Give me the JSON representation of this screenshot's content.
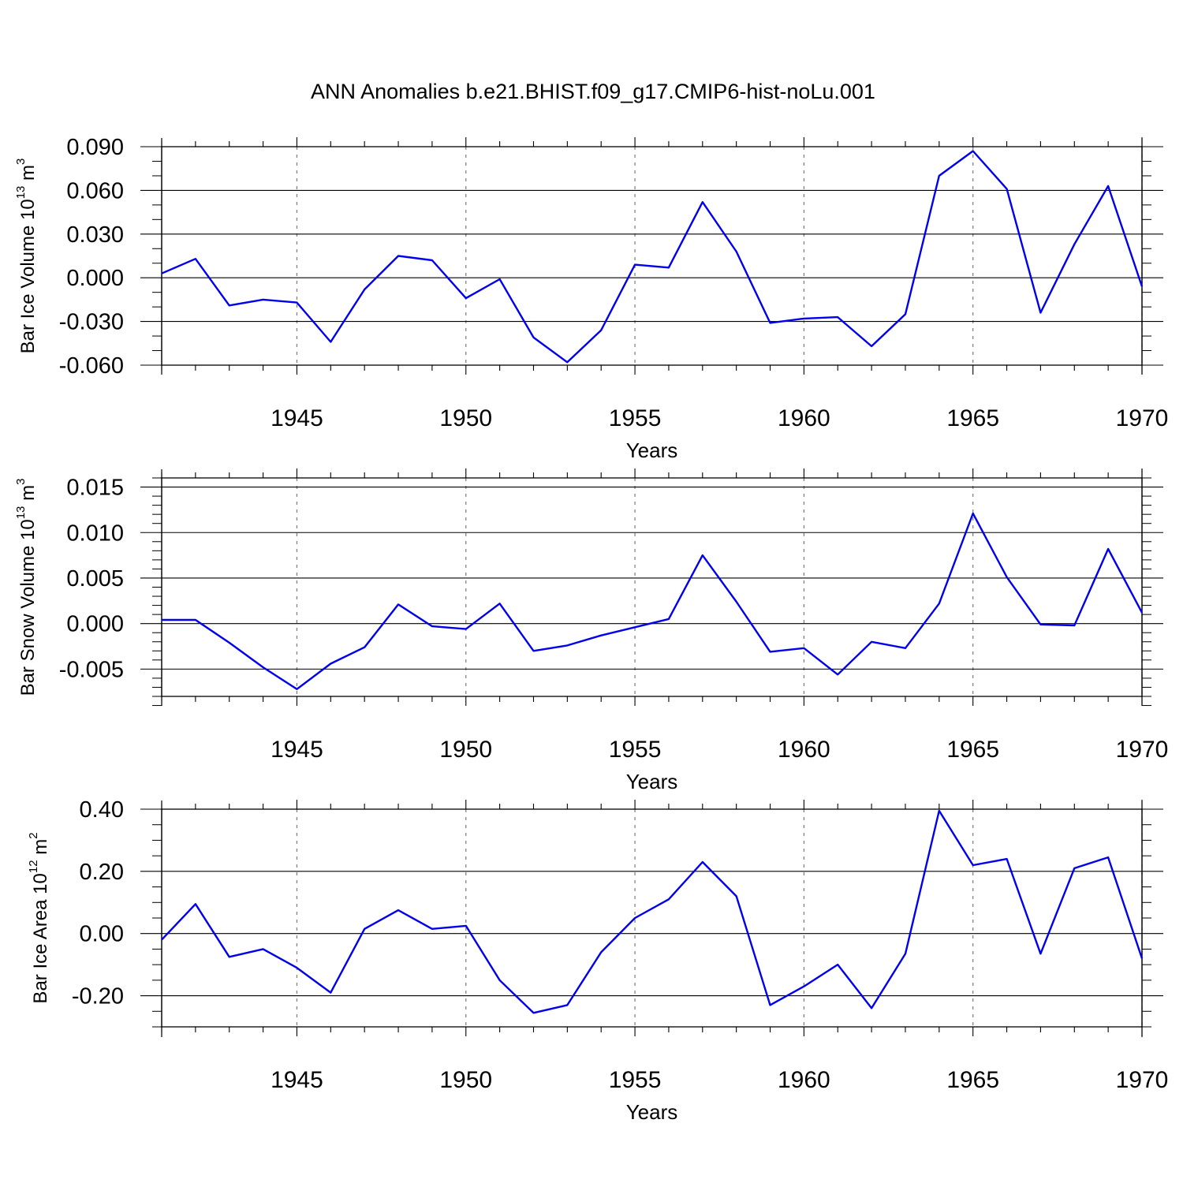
{
  "title": "ANN Anomalies b.e21.BHIST.f09_g17.CMIP6-hist-noLu.001",
  "chart_data": [
    {
      "type": "line",
      "ylabel": {
        "main": "Bar Ice Volume 10",
        "exp": "13",
        "unit": " m",
        "unit_exp": "3"
      },
      "xlabel": "Years",
      "xlim": [
        1941,
        1970
      ],
      "ylim": [
        -0.06,
        0.09
      ],
      "yticks": [
        -0.06,
        -0.03,
        0.0,
        0.03,
        0.06,
        0.09
      ],
      "ytick_labels": [
        "-0.060",
        "-0.030",
        "0.000",
        "0.030",
        "0.060",
        "0.090"
      ],
      "yminor_step": 0.01,
      "xticks": [
        1945,
        1950,
        1955,
        1960,
        1965,
        1970
      ],
      "xtick_labels": [
        "1945",
        "1950",
        "1955",
        "1960",
        "1965",
        "1970"
      ],
      "grid": "vertical dashed at 5-year ticks",
      "color": "#0000ee",
      "x": [
        1941,
        1942,
        1943,
        1944,
        1945,
        1946,
        1947,
        1948,
        1949,
        1950,
        1951,
        1952,
        1953,
        1954,
        1955,
        1956,
        1957,
        1958,
        1959,
        1960,
        1961,
        1962,
        1963,
        1964,
        1965,
        1966,
        1967,
        1968,
        1969,
        1970
      ],
      "values": [
        0.003,
        0.013,
        -0.019,
        -0.015,
        -0.017,
        -0.044,
        -0.008,
        0.015,
        0.012,
        -0.014,
        -0.001,
        -0.041,
        -0.058,
        -0.036,
        0.009,
        0.007,
        0.052,
        0.018,
        -0.031,
        -0.028,
        -0.027,
        -0.047,
        -0.025,
        0.07,
        0.087,
        0.061,
        -0.024,
        0.023,
        0.063,
        -0.006
      ]
    },
    {
      "type": "line",
      "ylabel": {
        "main": "Bar Snow Volume 10",
        "exp": "13",
        "unit": " m",
        "unit_exp": "3"
      },
      "xlabel": "Years",
      "xlim": [
        1941,
        1970
      ],
      "ylim": [
        -0.008,
        0.016
      ],
      "yticks": [
        -0.005,
        0.0,
        0.005,
        0.01,
        0.015
      ],
      "ytick_labels": [
        "-0.005",
        "0.000",
        "0.005",
        "0.010",
        "0.015"
      ],
      "yminor_step": 0.001,
      "xticks": [
        1945,
        1950,
        1955,
        1960,
        1965,
        1970
      ],
      "xtick_labels": [
        "1945",
        "1950",
        "1955",
        "1960",
        "1965",
        "1970"
      ],
      "grid": "vertical dashed at 5-year ticks",
      "color": "#0000ee",
      "x": [
        1941,
        1942,
        1943,
        1944,
        1945,
        1946,
        1947,
        1948,
        1949,
        1950,
        1951,
        1952,
        1953,
        1954,
        1955,
        1956,
        1957,
        1958,
        1959,
        1960,
        1961,
        1962,
        1963,
        1964,
        1965,
        1966,
        1967,
        1968,
        1969,
        1970
      ],
      "values": [
        0.0004,
        0.0004,
        -0.0021,
        -0.0048,
        -0.0072,
        -0.0044,
        -0.0026,
        0.0021,
        -0.0003,
        -0.0006,
        0.0022,
        -0.003,
        -0.0024,
        -0.0013,
        -0.0004,
        0.0005,
        0.0075,
        0.0024,
        -0.0031,
        -0.0027,
        -0.0056,
        -0.002,
        -0.0027,
        0.0022,
        0.0121,
        0.0051,
        -0.0001,
        -0.0002,
        0.0082,
        0.0012
      ]
    },
    {
      "type": "line",
      "ylabel": {
        "main": "Bar Ice Area 10",
        "exp": "12",
        "unit": " m",
        "unit_exp": "2"
      },
      "xlabel": "Years",
      "xlim": [
        1941,
        1970
      ],
      "ylim": [
        -0.3,
        0.4
      ],
      "yticks": [
        -0.2,
        0.0,
        0.2,
        0.4
      ],
      "ytick_labels": [
        "-0.20",
        "0.00",
        "0.20",
        "0.40"
      ],
      "yminor_step": 0.05,
      "xticks": [
        1945,
        1950,
        1955,
        1960,
        1965,
        1970
      ],
      "xtick_labels": [
        "1945",
        "1950",
        "1955",
        "1960",
        "1965",
        "1970"
      ],
      "grid": "vertical dashed at 5-year ticks",
      "color": "#0000ee",
      "x": [
        1941,
        1942,
        1943,
        1944,
        1945,
        1946,
        1947,
        1948,
        1949,
        1950,
        1951,
        1952,
        1953,
        1954,
        1955,
        1956,
        1957,
        1958,
        1959,
        1960,
        1961,
        1962,
        1963,
        1964,
        1965,
        1966,
        1967,
        1968,
        1969,
        1970
      ],
      "values": [
        -0.02,
        0.095,
        -0.075,
        -0.05,
        -0.11,
        -0.19,
        0.015,
        0.075,
        0.015,
        0.025,
        -0.15,
        -0.255,
        -0.23,
        -0.06,
        0.05,
        0.11,
        0.23,
        0.12,
        -0.23,
        -0.17,
        -0.1,
        -0.24,
        -0.065,
        0.395,
        0.22,
        0.24,
        -0.065,
        0.21,
        0.245,
        -0.08
      ]
    }
  ]
}
